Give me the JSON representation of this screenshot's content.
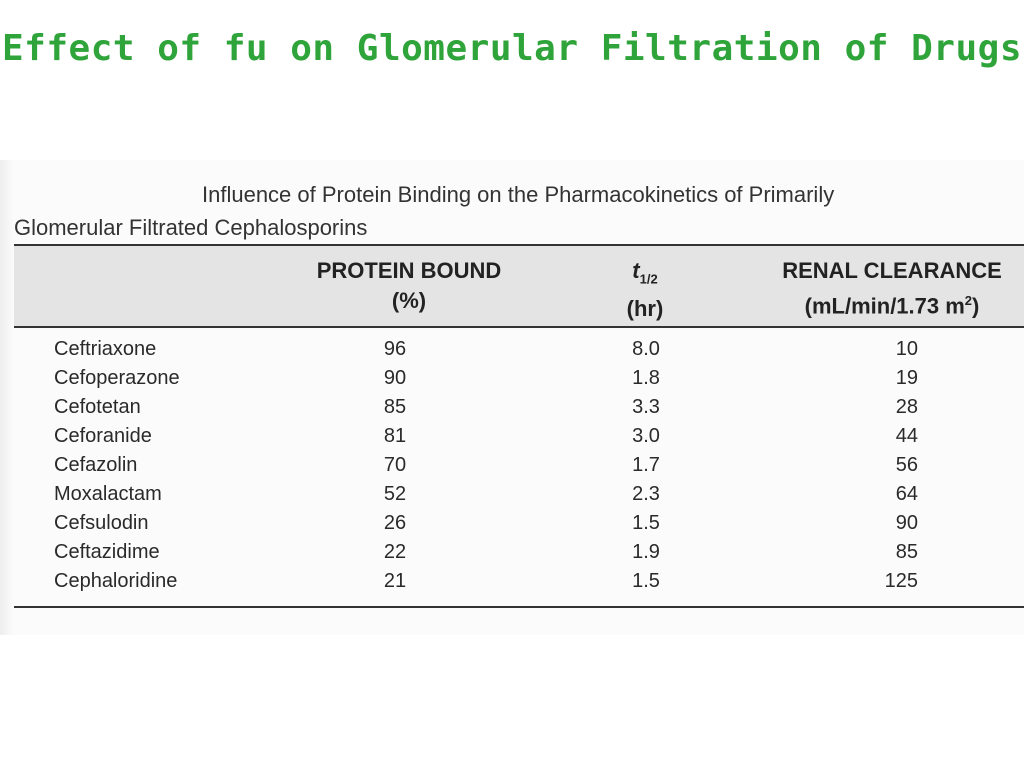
{
  "slide": {
    "title": "Effect of fu on Glomerular Filtration of Drugs"
  },
  "table": {
    "caption_line1": "Influence of Protein Binding on the Pharmacokinetics of Primarily",
    "caption_line2": "Glomerular Filtrated Cephalosporins",
    "headers": {
      "protein_bound": "PROTEIN BOUND",
      "protein_bound_unit": "(%)",
      "half_life_symbol": "t",
      "half_life_subscript": "1/2",
      "half_life_unit": "(hr)",
      "renal_clearance": "RENAL CLEARANCE",
      "renal_clearance_unit": "(mL/min/1.73 m",
      "renal_clearance_unit_sup": "2",
      "renal_clearance_unit_close": ")"
    },
    "rows": [
      {
        "drug": "Ceftriaxone",
        "protein_bound": "96",
        "half_life": "8.0",
        "renal_clearance": "10"
      },
      {
        "drug": "Cefoperazone",
        "protein_bound": "90",
        "half_life": "1.8",
        "renal_clearance": "19"
      },
      {
        "drug": "Cefotetan",
        "protein_bound": "85",
        "half_life": "3.3",
        "renal_clearance": "28"
      },
      {
        "drug": "Ceforanide",
        "protein_bound": "81",
        "half_life": "3.0",
        "renal_clearance": "44"
      },
      {
        "drug": "Cefazolin",
        "protein_bound": "70",
        "half_life": "1.7",
        "renal_clearance": "56"
      },
      {
        "drug": "Moxalactam",
        "protein_bound": "52",
        "half_life": "2.3",
        "renal_clearance": "64"
      },
      {
        "drug": "Cefsulodin",
        "protein_bound": "26",
        "half_life": "1.5",
        "renal_clearance": "90"
      },
      {
        "drug": "Ceftazidime",
        "protein_bound": "22",
        "half_life": "1.9",
        "renal_clearance": "85"
      },
      {
        "drug": "Cephaloridine",
        "protein_bound": "21",
        "half_life": "1.5",
        "renal_clearance": "125"
      }
    ]
  }
}
